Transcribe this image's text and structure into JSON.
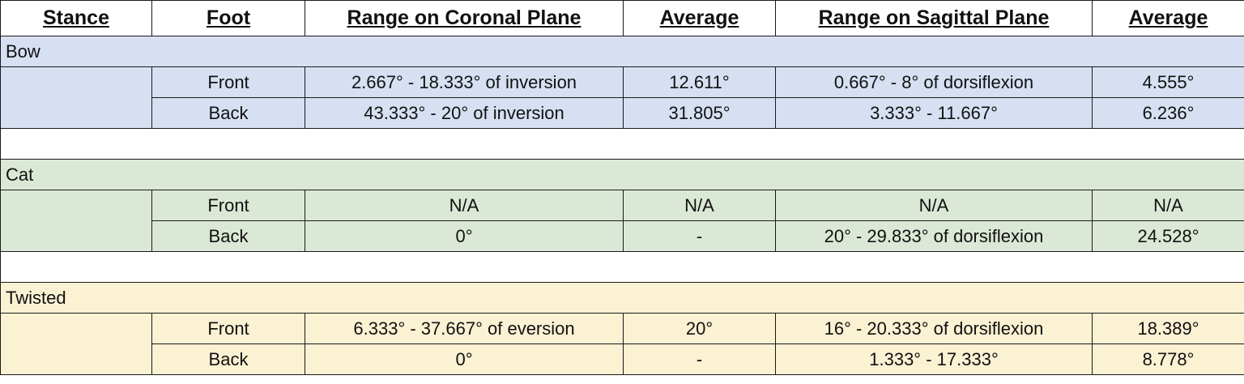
{
  "columns": [
    "Stance",
    "Foot",
    "Range on Coronal Plane",
    "Average",
    "Range on Sagittal Plane",
    "Average"
  ],
  "groups": [
    {
      "name": "Bow",
      "color": "#d6e0f2",
      "rows": [
        {
          "foot": "Front",
          "coronal_range": "2.667° - 18.333° of inversion",
          "coronal_avg": "12.611°",
          "sagittal_range": "0.667° - 8° of dorsiflexion",
          "sagittal_avg": "4.555°"
        },
        {
          "foot": "Back",
          "coronal_range": "43.333° - 20° of inversion",
          "coronal_avg": "31.805°",
          "sagittal_range": "3.333° - 11.667°",
          "sagittal_avg": "6.236°"
        }
      ]
    },
    {
      "name": "Cat",
      "color": "#dce8d6",
      "rows": [
        {
          "foot": "Front",
          "coronal_range": "N/A",
          "coronal_avg": "N/A",
          "sagittal_range": "N/A",
          "sagittal_avg": "N/A"
        },
        {
          "foot": "Back",
          "coronal_range": "0°",
          "coronal_avg": "-",
          "sagittal_range": "20° - 29.833° of dorsiflexion",
          "sagittal_avg": "24.528°"
        }
      ]
    },
    {
      "name": "Twisted",
      "color": "#fbf1d3",
      "rows": [
        {
          "foot": "Front",
          "coronal_range": "6.333° - 37.667° of eversion",
          "coronal_avg": "20°",
          "sagittal_range": "16° - 20.333° of dorsiflexion",
          "sagittal_avg": "18.389°"
        },
        {
          "foot": "Back",
          "coronal_range": "0°",
          "coronal_avg": "-",
          "sagittal_range": "1.333° - 17.333°",
          "sagittal_avg": "8.778°"
        }
      ]
    }
  ]
}
